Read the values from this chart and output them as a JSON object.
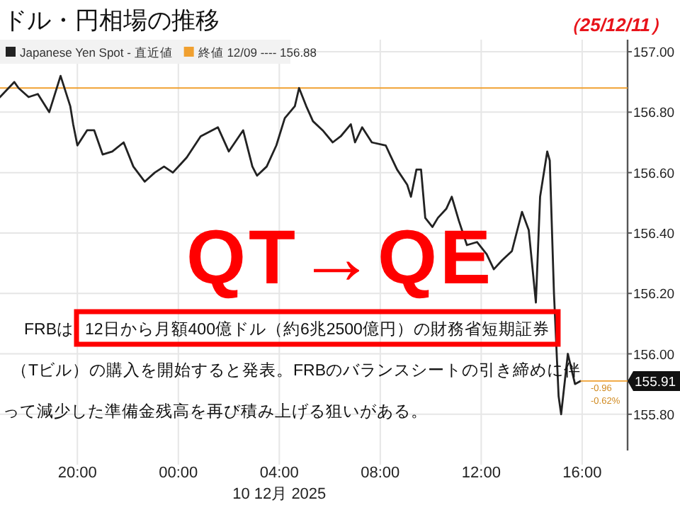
{
  "chart_data": {
    "type": "line",
    "title": "ドル・円相場の推移",
    "x": [
      "2025-12-09T16:56",
      "2025-12-09T17:30",
      "2025-12-09T17:40",
      "2025-12-09T18:04",
      "2025-12-09T18:26",
      "2025-12-09T18:53",
      "2025-12-09T19:20",
      "2025-12-09T19:43",
      "2025-12-09T19:50",
      "2025-12-09T20:00",
      "2025-12-09T20:23",
      "2025-12-09T20:40",
      "2025-12-09T21:00",
      "2025-12-09T21:23",
      "2025-12-09T21:50",
      "2025-12-09T22:13",
      "2025-12-09T22:40",
      "2025-12-09T23:04",
      "2025-12-09T23:26",
      "2025-12-09T23:47",
      "2025-12-10T00:20",
      "2025-12-10T00:53",
      "2025-12-10T01:34",
      "2025-12-10T02:00",
      "2025-12-10T02:34",
      "2025-12-10T02:56",
      "2025-12-10T03:07",
      "2025-12-10T03:30",
      "2025-12-10T03:53",
      "2025-12-10T04:13",
      "2025-12-10T04:37",
      "2025-12-10T04:47",
      "2025-12-10T05:04",
      "2025-12-10T05:20",
      "2025-12-10T05:43",
      "2025-12-10T06:07",
      "2025-12-10T06:26",
      "2025-12-10T06:50",
      "2025-12-10T07:00",
      "2025-12-10T07:17",
      "2025-12-10T07:40",
      "2025-12-10T08:13",
      "2025-12-10T08:23",
      "2025-12-10T08:40",
      "2025-12-10T09:04",
      "2025-12-10T09:13",
      "2025-12-10T09:26",
      "2025-12-10T09:37",
      "2025-12-10T09:47",
      "2025-12-10T10:04",
      "2025-12-10T10:17",
      "2025-12-10T10:37",
      "2025-12-10T10:50",
      "2025-12-10T11:07",
      "2025-12-10T11:26",
      "2025-12-10T11:50",
      "2025-12-10T12:13",
      "2025-12-10T12:30",
      "2025-12-10T12:50",
      "2025-12-10T13:13",
      "2025-12-10T13:37",
      "2025-12-10T13:53",
      "2025-12-10T14:10",
      "2025-12-10T14:20",
      "2025-12-10T14:37",
      "2025-12-10T14:43",
      "2025-12-10T14:53",
      "2025-12-10T15:04",
      "2025-12-10T15:10",
      "2025-12-10T15:26",
      "2025-12-10T15:43",
      "2025-12-10T15:56"
    ],
    "series": [
      {
        "name": "Japanese Yen Spot - 直近値",
        "color": "#222222",
        "values": [
          156.85,
          156.9,
          156.88,
          156.85,
          156.86,
          156.8,
          156.92,
          156.82,
          156.76,
          156.69,
          156.74,
          156.74,
          156.66,
          156.67,
          156.7,
          156.62,
          156.57,
          156.6,
          156.62,
          156.6,
          156.65,
          156.72,
          156.75,
          156.67,
          156.74,
          156.62,
          156.59,
          156.62,
          156.69,
          156.78,
          156.82,
          156.88,
          156.82,
          156.77,
          156.74,
          156.7,
          156.72,
          156.76,
          156.7,
          156.75,
          156.7,
          156.69,
          156.66,
          156.61,
          156.56,
          156.52,
          156.61,
          156.61,
          156.45,
          156.42,
          156.45,
          156.48,
          156.52,
          156.44,
          156.36,
          156.37,
          156.33,
          156.28,
          156.31,
          156.34,
          156.47,
          156.41,
          156.17,
          156.52,
          156.67,
          156.64,
          156.2,
          155.86,
          155.8,
          156.0,
          155.9,
          155.91
        ],
        "value_labels": [
          null,
          null,
          null,
          null,
          null,
          null,
          null,
          null,
          null,
          null,
          null,
          null,
          null,
          null,
          null,
          null,
          null,
          null,
          null,
          null,
          null,
          null,
          null,
          null,
          null,
          null,
          null,
          null,
          null,
          null,
          null,
          null,
          null,
          null,
          null,
          null,
          null,
          null,
          null,
          null,
          null,
          null,
          null,
          null,
          null,
          null,
          null,
          null,
          null,
          null,
          null,
          null,
          null,
          null,
          null,
          null,
          null,
          null,
          null,
          null,
          null,
          null,
          null,
          null,
          null,
          null,
          null,
          null,
          null,
          null,
          null,
          "155.91"
        ]
      }
    ],
    "xlim": [
      "2025-12-09T16:56",
      "2025-12-10T17:48"
    ],
    "xticks": [
      {
        "value": "2025-12-09T20:00",
        "label": "20:00"
      },
      {
        "value": "2025-12-10T00:00",
        "label": "00:00"
      },
      {
        "value": "2025-12-10T04:00",
        "label": "04:00\n10 12月 2025"
      },
      {
        "value": "2025-12-10T08:00",
        "label": "08:00"
      },
      {
        "value": "2025-12-10T12:00",
        "label": "12:00"
      },
      {
        "value": "2025-12-10T16:00",
        "label": "16:00"
      }
    ],
    "ylim": [
      155.68,
      157.04
    ],
    "yticks": [
      {
        "value": 155.8,
        "label": "155.80"
      },
      {
        "value": 156.0,
        "label": "156.00"
      },
      {
        "value": 156.2,
        "label": "156.20"
      },
      {
        "value": 156.4,
        "label": "156.40"
      },
      {
        "value": 156.6,
        "label": "156.60"
      },
      {
        "value": 156.8,
        "label": "156.80"
      },
      {
        "value": 157.0,
        "label": "157.00"
      }
    ],
    "grid": true,
    "legend": "top left",
    "ref_lines": [
      {
        "axis": "y",
        "value": 156.88,
        "label": "終値 12/09 ---- 156.88",
        "color": "#f0a030"
      }
    ],
    "annotations": [
      "（25/12/11）",
      "QT→QE",
      "FRBは",
      "12日から月額400億ドル（約6兆2500億円）の財務省短期証券",
      "（Tビル）の購入を開始すると発表。FRBのバランスシートの引き締めに伴",
      "って減少した準備金残高を再び積み上げる狙いがある。",
      "-0.96",
      "-0.62%"
    ]
  }
}
